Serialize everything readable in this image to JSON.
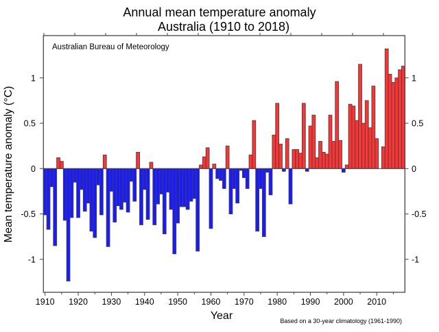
{
  "chart_data": {
    "type": "bar",
    "title": "Annual mean temperature anomaly",
    "subtitle": "Australia (1910 to 2018)",
    "annotation": "Australian Bureau of Meteorology",
    "footnote": "Based on a 30-year climatology (1961-1990)",
    "xlabel": "Year",
    "ylabel": "Mean temperature anomaly (°C)",
    "xlim": [
      1910,
      2018
    ],
    "ylim": [
      -1.4,
      1.45
    ],
    "x_ticks": [
      "1910",
      "1920",
      "1930",
      "1940",
      "1950",
      "1960",
      "1970",
      "1980",
      "1990",
      "2000",
      "2010"
    ],
    "y_ticks": [
      {
        "value": 1,
        "label": "1"
      },
      {
        "value": 0.5,
        "label": "0.5"
      },
      {
        "value": 0,
        "label": "0"
      },
      {
        "value": -0.5,
        "label": "-0.5"
      },
      {
        "value": -1,
        "label": "-1"
      }
    ],
    "colors": {
      "positive": "#ff3333",
      "negative": "#1a1aff",
      "outline": "#444444"
    },
    "start_year": 1910,
    "values": [
      -0.51,
      -0.67,
      -0.2,
      -0.85,
      0.12,
      0.08,
      -0.57,
      -1.24,
      -0.54,
      -0.15,
      -0.54,
      -0.23,
      -0.47,
      -0.38,
      -0.69,
      -0.76,
      -0.18,
      -0.51,
      0.15,
      -0.86,
      -0.25,
      -0.59,
      -0.41,
      -0.45,
      -0.37,
      -0.48,
      -0.14,
      -0.36,
      0.18,
      -0.62,
      -0.23,
      -0.56,
      0.07,
      -0.62,
      -0.39,
      -0.28,
      -0.72,
      -0.26,
      -0.45,
      -0.94,
      -0.6,
      -0.42,
      -0.42,
      -0.45,
      -0.36,
      -0.33,
      -0.91,
      0.04,
      0.13,
      0.23,
      -0.66,
      0.05,
      -0.11,
      -0.13,
      -0.22,
      0.25,
      -0.5,
      -0.22,
      -0.38,
      -0.02,
      -0.1,
      -0.22,
      0.15,
      0.53,
      -0.69,
      -0.22,
      -0.75,
      -0.04,
      -0.29,
      0.37,
      0.72,
      0.27,
      -0.03,
      0.33,
      -0.39,
      0.21,
      0.21,
      0.17,
      0.72,
      -0.03,
      0.47,
      0.59,
      0.12,
      0.3,
      0.18,
      0.16,
      0.59,
      0.3,
      0.96,
      0.31,
      -0.04,
      0.04,
      0.71,
      0.69,
      0.53,
      1.15,
      0.5,
      0.75,
      0.45,
      0.91,
      0.33,
      0.0,
      0.24,
      1.32,
      1.04,
      0.95,
      1.0,
      1.09,
      1.13
    ]
  }
}
